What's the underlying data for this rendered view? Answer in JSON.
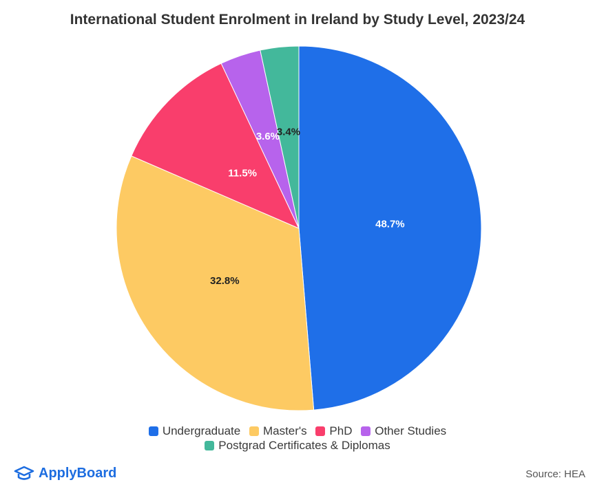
{
  "chart_data": {
    "type": "pie",
    "title": "International Student Enrolment in Ireland by Study Level, 2023/24",
    "series": [
      {
        "name": "Undergraduate",
        "value": 48.7,
        "label": "48.7%",
        "color": "#1f6fe8",
        "label_color": "#ffffff"
      },
      {
        "name": "Master's",
        "value": 32.8,
        "label": "32.8%",
        "color": "#fdca63",
        "label_color": "#222222"
      },
      {
        "name": "PhD",
        "value": 11.5,
        "label": "11.5%",
        "color": "#f93e6c",
        "label_color": "#ffffff"
      },
      {
        "name": "Other Studies",
        "value": 3.6,
        "label": "3.6%",
        "color": "#b763ec",
        "label_color": "#ffffff"
      },
      {
        "name": "Postgrad Certificates & Diplomas",
        "value": 3.4,
        "label": "3.4%",
        "color": "#43b89b",
        "label_color": "#222222"
      }
    ],
    "legend_position": "bottom"
  },
  "brand": {
    "name": "ApplyBoard",
    "icon": "applyboard-logo-icon",
    "color": "#1d6de0"
  },
  "source": "Source: HEA"
}
